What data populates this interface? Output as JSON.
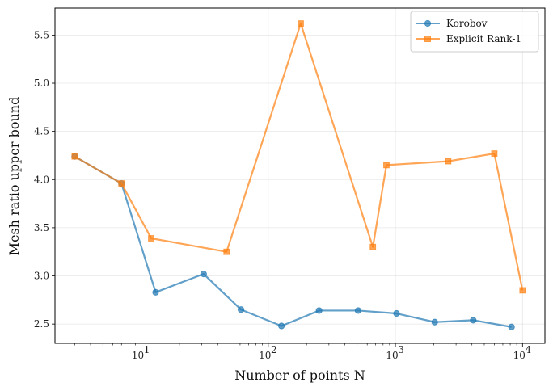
{
  "chart_data": {
    "type": "line",
    "title": "",
    "xlabel": "Number of points N",
    "ylabel": "Mesh ratio upper bound",
    "xscale": "log",
    "xlim": [
      2.1,
      15000
    ],
    "ylim": [
      2.3,
      5.78
    ],
    "grid": true,
    "legend_position": "top-right",
    "x_ticks": [
      {
        "value": 10,
        "base": "10",
        "exp": "1"
      },
      {
        "value": 100,
        "base": "10",
        "exp": "2"
      },
      {
        "value": 1000,
        "base": "10",
        "exp": "3"
      },
      {
        "value": 10000,
        "base": "10",
        "exp": "4"
      }
    ],
    "y_ticks": [
      "2.5",
      "3.0",
      "3.5",
      "4.0",
      "4.5",
      "5.0",
      "5.5"
    ],
    "series": [
      {
        "name": "Korobov",
        "color": "#1f77b4",
        "marker": "circle",
        "x": [
          3,
          7,
          13,
          31,
          61,
          127,
          251,
          509,
          1021,
          2039,
          4093,
          8191
        ],
        "y": [
          4.24,
          3.96,
          2.83,
          3.02,
          2.65,
          2.48,
          2.64,
          2.64,
          2.61,
          2.52,
          2.54,
          2.47
        ]
      },
      {
        "name": "Explicit Rank-1",
        "color": "#ff7f0e",
        "marker": "square",
        "x": [
          3,
          7,
          12,
          47,
          180,
          665,
          850,
          2600,
          6000,
          10000
        ],
        "y": [
          4.24,
          3.96,
          3.39,
          3.25,
          5.62,
          3.3,
          4.15,
          4.19,
          4.27,
          2.85
        ]
      }
    ]
  }
}
